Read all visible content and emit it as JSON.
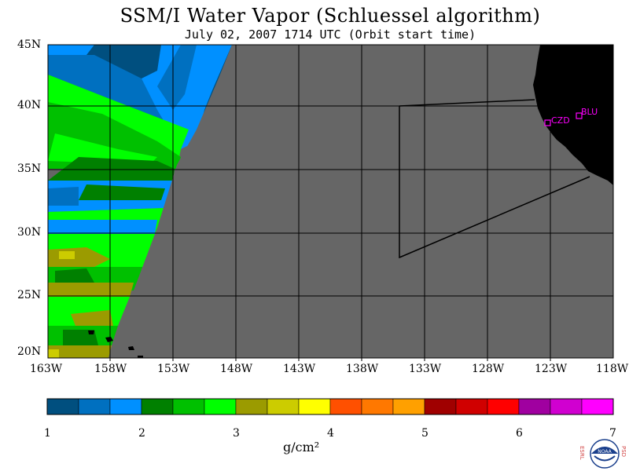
{
  "title": "SSM/I Water Vapor (Schluessel algorithm)",
  "subtitle": "July 02, 2007  1714 UTC  (Orbit start time)",
  "lat_labels": [
    "45N",
    "40N",
    "35N",
    "30N",
    "25N",
    "20N"
  ],
  "lon_labels": [
    "163W",
    "158W",
    "153W",
    "148W",
    "143W",
    "138W",
    "133W",
    "128W",
    "123W",
    "118W"
  ],
  "stations": [
    {
      "name": "CZD"
    },
    {
      "name": "BLU"
    }
  ],
  "colorbar": {
    "ticks": [
      "1",
      "2",
      "3",
      "4",
      "5",
      "6",
      "7"
    ],
    "unit": "g/cm²",
    "colors": [
      "#004f7f",
      "#0070c0",
      "#0090ff",
      "#008000",
      "#00c000",
      "#00ff00",
      "#9b9b00",
      "#cccc00",
      "#ffff00",
      "#ff5000",
      "#ff7800",
      "#ffa000",
      "#a00000",
      "#d00000",
      "#ff0000",
      "#a000a0",
      "#d000d0",
      "#ff00ff"
    ]
  },
  "colors": {
    "nodata": "#666666",
    "land": "#000000",
    "station": "#ff00ff"
  },
  "logo": {
    "left_text": "ESRL",
    "right_text": "PSD",
    "center_text": "NOAA"
  }
}
